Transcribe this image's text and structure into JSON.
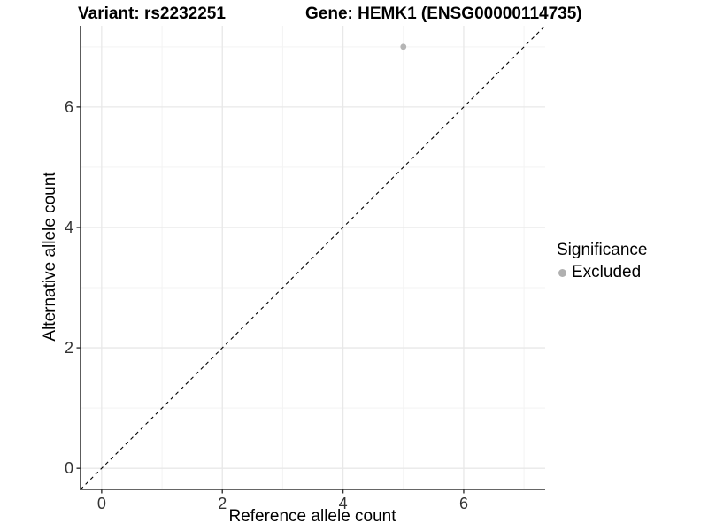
{
  "header": {
    "variant_title": "Variant: rs2232251",
    "gene_title": "Gene: HEMK1 (ENSG00000114735)"
  },
  "legend": {
    "title": "Significance",
    "items": [
      {
        "label": "Excluded",
        "color": "#b0b0b0"
      }
    ]
  },
  "chart_data": {
    "type": "scatter",
    "title": "Variant: rs2232251 — Gene: HEMK1 (ENSG00000114735)",
    "xlabel": "Reference allele count",
    "ylabel": "Alternative allele count",
    "points": [
      {
        "x": 5,
        "y": 7,
        "series": "Excluded"
      }
    ],
    "x_major_ticks": [
      0,
      2,
      4,
      6
    ],
    "x_minor_ticks": [
      1,
      3,
      5,
      7
    ],
    "y_major_ticks": [
      0,
      2,
      4,
      6
    ],
    "y_minor_ticks": [
      1,
      3,
      5,
      7
    ],
    "xlim": [
      -0.35,
      7.35
    ],
    "ylim": [
      -0.35,
      7.35
    ],
    "reference_line": "y = x, black dashed",
    "grid": "major and minor gridlines, light grey, white panel",
    "legend_position": "right",
    "colors": {
      "grid_major": "#e8e8e8",
      "grid_minor": "#f3f3f3",
      "axis_line": "#333333",
      "tick_text": "#333333",
      "reference_line": "#000000",
      "series": {
        "Excluded": "#b5b5b5"
      }
    }
  }
}
